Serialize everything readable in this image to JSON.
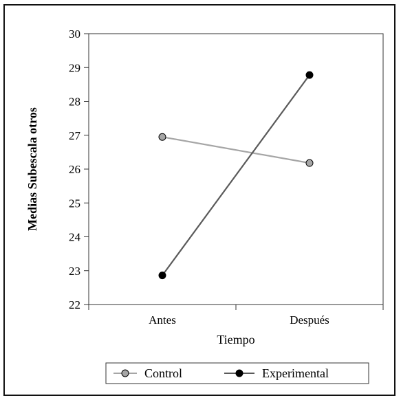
{
  "chart_data": {
    "type": "line",
    "categories": [
      "Antes",
      "Después"
    ],
    "xlabel": "Tiempo",
    "ylabel": "Medias Subescala otros",
    "ylim": [
      22,
      30
    ],
    "yticks": [
      22,
      23,
      24,
      25,
      26,
      27,
      28,
      29,
      30
    ],
    "grid": false,
    "legend_position": "bottom",
    "series": [
      {
        "name": "Control",
        "values": [
          26.95,
          26.18
        ],
        "line_color": "#a6a6a6",
        "marker_color": "#a6a6a6"
      },
      {
        "name": "Experimental",
        "values": [
          22.86,
          28.78
        ],
        "line_color": "#5a5a5a",
        "marker_color": "#000000"
      }
    ]
  }
}
